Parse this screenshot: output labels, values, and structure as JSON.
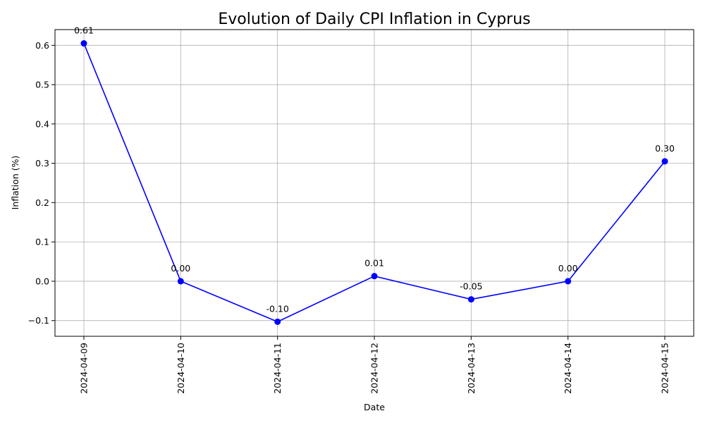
{
  "chart_data": {
    "type": "line",
    "title": "Evolution of Daily CPI Inflation in Cyprus",
    "xlabel": "Date",
    "ylabel": "Inflation (%)",
    "categories": [
      "2024-04-09",
      "2024-04-10",
      "2024-04-11",
      "2024-04-12",
      "2024-04-13",
      "2024-04-14",
      "2024-04-15"
    ],
    "series": [
      {
        "values": [
          0.605,
          0.0,
          -0.103,
          0.013,
          -0.046,
          0.0,
          0.305
        ],
        "labels": [
          "0.61",
          "0.00",
          "-0.10",
          "0.01",
          "-0.05",
          "0.00",
          "0.30"
        ],
        "color": "#0000ff"
      }
    ],
    "ylim": [
      -0.14,
      0.64
    ],
    "yticks": [
      -0.1,
      0.0,
      0.1,
      0.2,
      0.3,
      0.4,
      0.5,
      0.6
    ],
    "ytick_labels": [
      "−0.1",
      "0.0",
      "0.1",
      "0.2",
      "0.3",
      "0.4",
      "0.5",
      "0.6"
    ],
    "grid": true,
    "marker": "circle"
  }
}
